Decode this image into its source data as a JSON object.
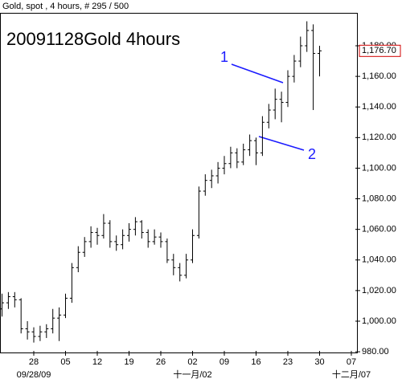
{
  "chart_data": {
    "type": "ohlc",
    "header": "Gold, spot , 4 hours, # 295 / 500",
    "title": "20091128Gold 4hours",
    "color": "#000000",
    "series": {
      "open": [
        1008,
        1012,
        1016,
        1014,
        995,
        993,
        990,
        993,
        995,
        1002,
        1004,
        1015,
        1035,
        1045,
        1052,
        1058,
        1056,
        1064,
        1052,
        1050,
        1056,
        1060,
        1065,
        1058,
        1052,
        1055,
        1052,
        1040,
        1035,
        1030,
        1040,
        1056,
        1085,
        1092,
        1095,
        1100,
        1103,
        1110,
        1104,
        1112,
        1118,
        1110,
        1130,
        1138,
        1145,
        1143,
        1160,
        1170,
        1180,
        1190,
        1175
      ],
      "high": [
        1018,
        1019,
        1019,
        1015,
        1000,
        996,
        997,
        998,
        1008,
        1009,
        1018,
        1038,
        1049,
        1055,
        1062,
        1061,
        1070,
        1066,
        1056,
        1060,
        1064,
        1068,
        1066,
        1060,
        1060,
        1058,
        1054,
        1044,
        1038,
        1044,
        1060,
        1088,
        1096,
        1099,
        1104,
        1108,
        1114,
        1113,
        1116,
        1122,
        1120,
        1134,
        1142,
        1152,
        1150,
        1164,
        1174,
        1186,
        1196,
        1194,
        1180
      ],
      "low": [
        1003,
        1008,
        1009,
        992,
        988,
        986,
        987,
        989,
        992,
        987,
        1002,
        1012,
        1032,
        1042,
        1048,
        1050,
        1054,
        1048,
        1046,
        1047,
        1052,
        1056,
        1054,
        1048,
        1050,
        1048,
        1038,
        1030,
        1026,
        1028,
        1038,
        1054,
        1082,
        1087,
        1090,
        1096,
        1100,
        1100,
        1102,
        1108,
        1102,
        1108,
        1126,
        1132,
        1130,
        1140,
        1156,
        1166,
        1176,
        1138,
        1160
      ],
      "close": [
        1012,
        1016,
        1014,
        995,
        993,
        990,
        993,
        995,
        1002,
        1004,
        1015,
        1035,
        1045,
        1052,
        1058,
        1056,
        1064,
        1052,
        1050,
        1056,
        1060,
        1065,
        1058,
        1052,
        1055,
        1052,
        1040,
        1035,
        1030,
        1040,
        1056,
        1085,
        1092,
        1095,
        1100,
        1103,
        1110,
        1104,
        1112,
        1118,
        1110,
        1130,
        1138,
        1145,
        1143,
        1160,
        1170,
        1180,
        1190,
        1175,
        1176.7
      ]
    },
    "ylim": [
      979,
      1201
    ],
    "yticks": [
      {
        "value": 980,
        "label": "980.00"
      },
      {
        "value": 1000,
        "label": "1,000.00"
      },
      {
        "value": 1020,
        "label": "1,020.00"
      },
      {
        "value": 1040,
        "label": "1,040.00"
      },
      {
        "value": 1060,
        "label": "1,060.00"
      },
      {
        "value": 1080,
        "label": "1,080.00"
      },
      {
        "value": 1100,
        "label": "1,100.00"
      },
      {
        "value": 1120,
        "label": "1,120.00"
      },
      {
        "value": 1140,
        "label": "1,140.00"
      },
      {
        "value": 1160,
        "label": "1,160.00"
      },
      {
        "value": 1180,
        "label": "1,180.00"
      }
    ],
    "xticks": [
      {
        "value": 5,
        "label": "28"
      },
      {
        "value": 10,
        "label": "05"
      },
      {
        "value": 15,
        "label": "12"
      },
      {
        "value": 20,
        "label": "19"
      },
      {
        "value": 25,
        "label": "26"
      },
      {
        "value": 30,
        "label": "02"
      },
      {
        "value": 35,
        "label": "09"
      },
      {
        "value": 40,
        "label": "16"
      },
      {
        "value": 45,
        "label": "23"
      },
      {
        "value": 50,
        "label": "30"
      },
      {
        "value": 55,
        "label": "07"
      }
    ],
    "xsublabels": [
      {
        "value": 5,
        "label": "09/28/09"
      },
      {
        "value": 30,
        "label": "十一月/02"
      },
      {
        "value": 55,
        "label": "十二月/07"
      }
    ],
    "last_price": {
      "value": 1176.7,
      "label": "1,176.70"
    },
    "annotations": [
      "1",
      "2"
    ]
  }
}
